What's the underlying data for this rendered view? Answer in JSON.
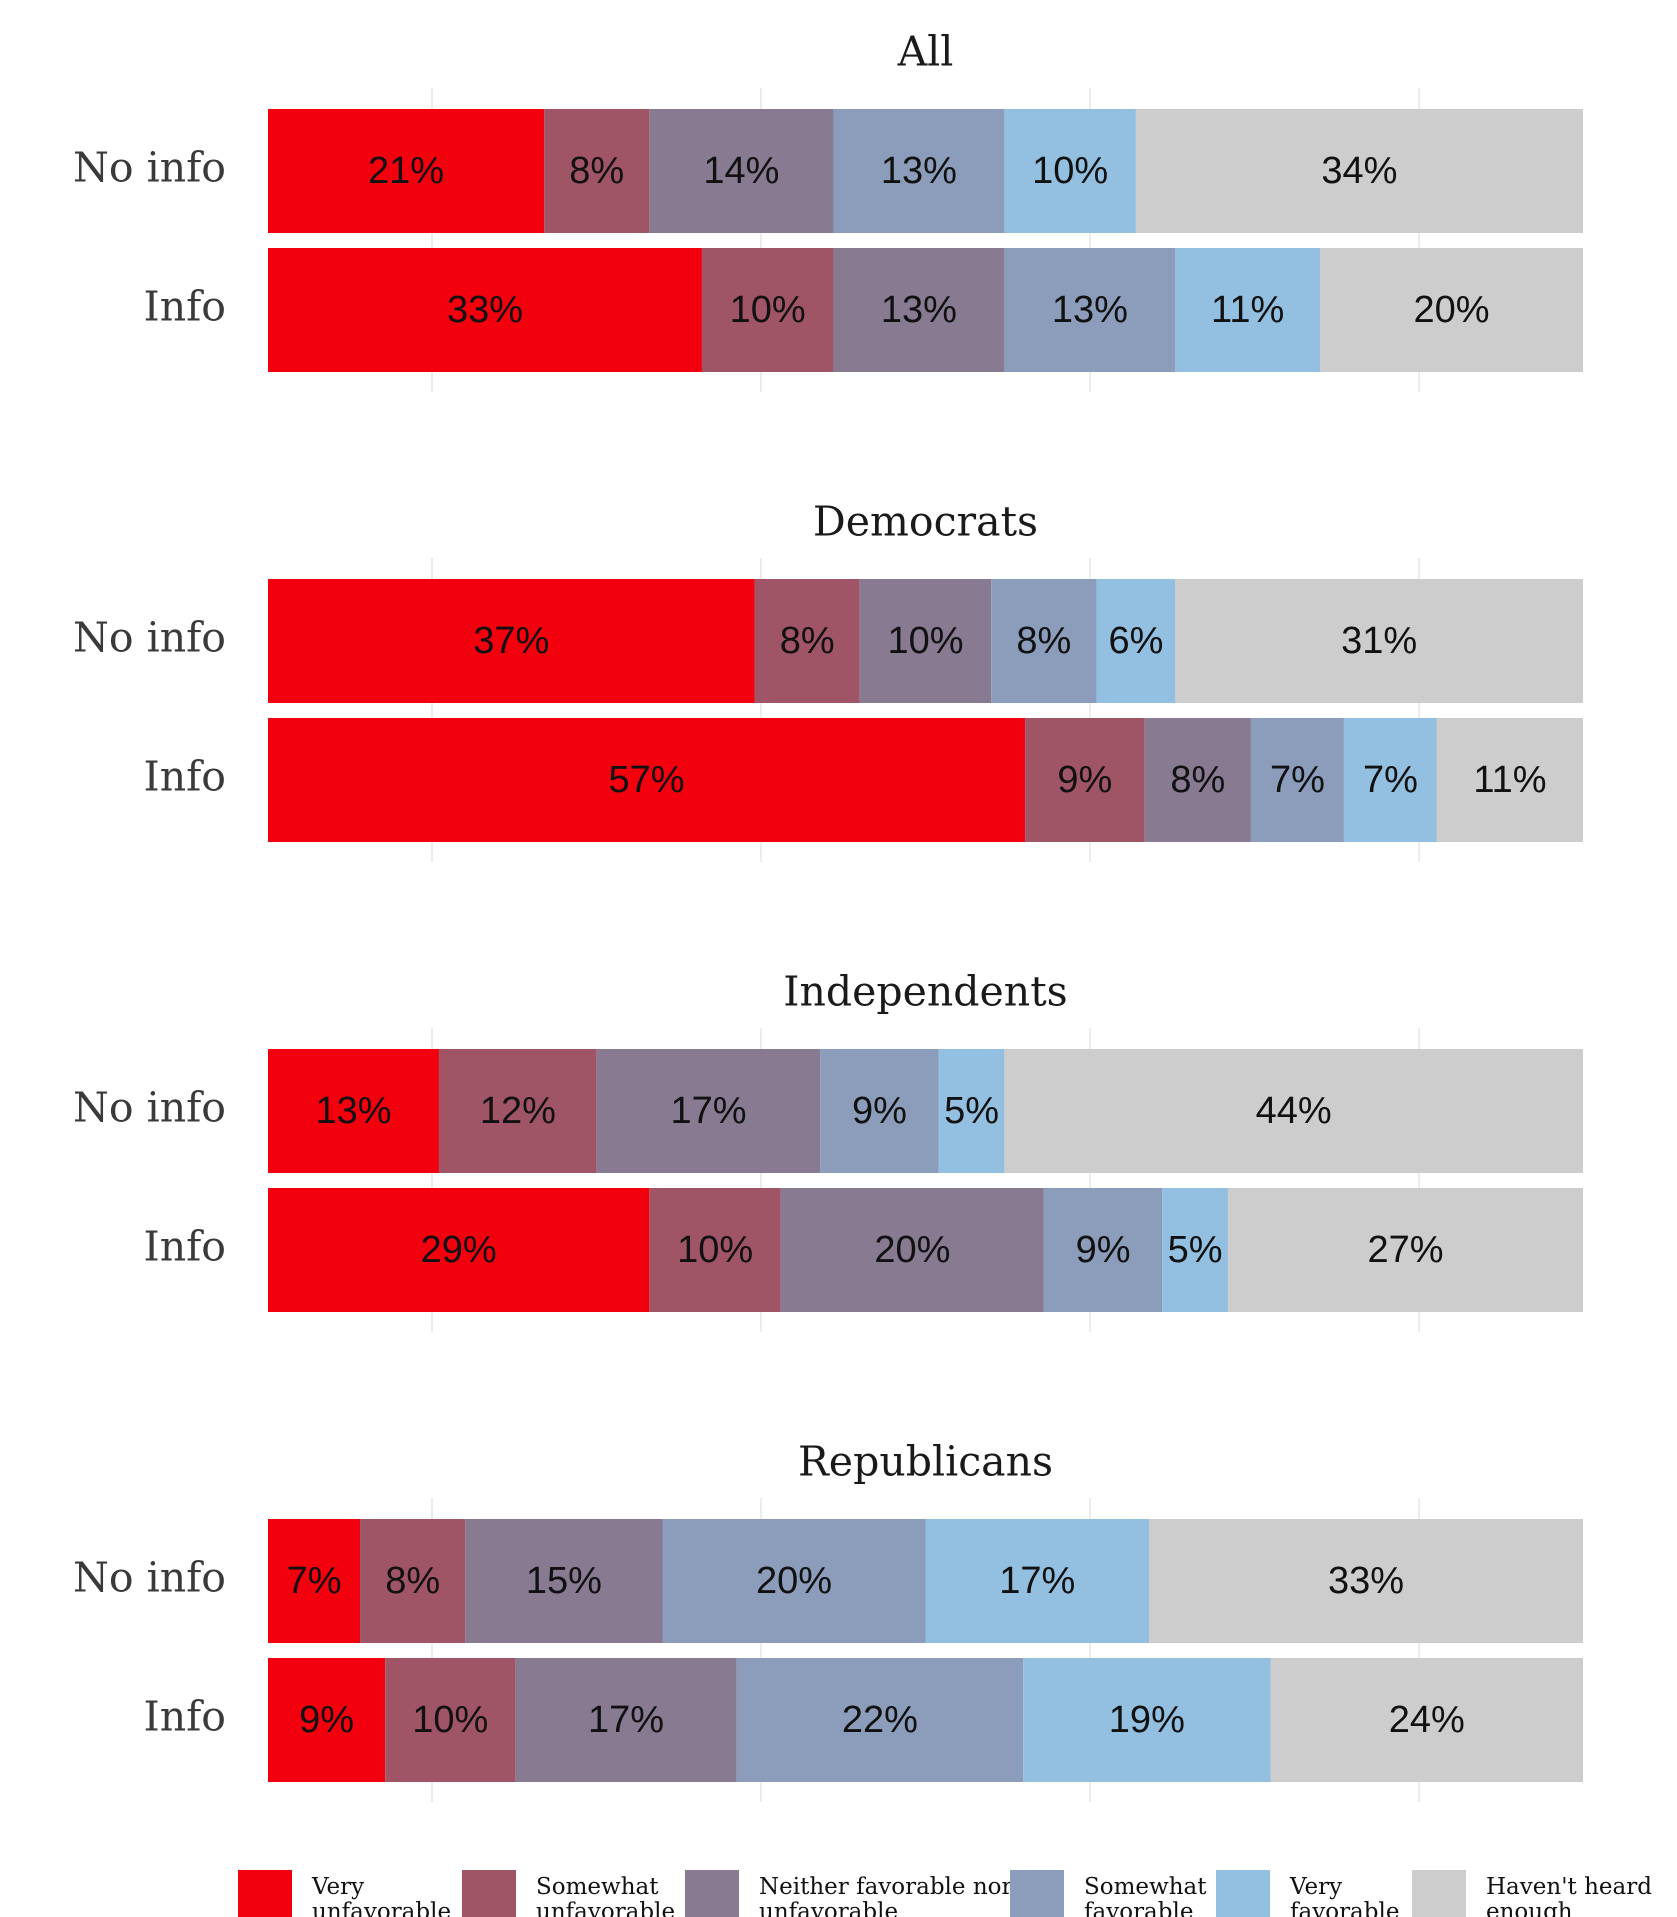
{
  "chart_data": {
    "type": "bar",
    "orientation": "horizontal",
    "stacked": true,
    "normalized": true,
    "rows": [
      "No info",
      "Info"
    ],
    "grid": true,
    "legend_position": "bottom",
    "categories": [
      "Very unfavorable",
      "Somewhat unfavorable",
      "Neither favorable nor unfavorable",
      "Somewhat favorable",
      "Very favorable",
      "Haven't heard enough"
    ],
    "colors": [
      "#f2000e",
      "#a05567",
      "#877a91",
      "#8b9dba",
      "#93bfe0",
      "#cdcdcd"
    ],
    "panels": [
      {
        "title": "All",
        "series": [
          {
            "values": [
              21,
              8,
              14,
              13,
              10,
              34
            ],
            "labels": [
              "21%",
              "8%",
              "14%",
              "13%",
              "10%",
              "34%"
            ]
          },
          {
            "values": [
              33,
              10,
              13,
              13,
              11,
              20
            ],
            "labels": [
              "33%",
              "10%",
              "13%",
              "13%",
              "11%",
              "20%"
            ]
          }
        ]
      },
      {
        "title": "Democrats",
        "series": [
          {
            "values": [
              37,
              8,
              10,
              8,
              6,
              31
            ],
            "labels": [
              "37%",
              "8%",
              "10%",
              "8%",
              "6%",
              "31%"
            ]
          },
          {
            "values": [
              57,
              9,
              8,
              7,
              7,
              11
            ],
            "labels": [
              "57%",
              "9%",
              "8%",
              "7%",
              "7%",
              "11%"
            ]
          }
        ]
      },
      {
        "title": "Independents",
        "series": [
          {
            "values": [
              13,
              12,
              17,
              9,
              5,
              44
            ],
            "labels": [
              "13%",
              "12%",
              "17%",
              "9%",
              "5%",
              "44%"
            ]
          },
          {
            "values": [
              29,
              10,
              20,
              9,
              5,
              27
            ],
            "labels": [
              "29%",
              "10%",
              "20%",
              "9%",
              "5%",
              "27%"
            ]
          }
        ]
      },
      {
        "title": "Republicans",
        "series": [
          {
            "values": [
              7,
              8,
              15,
              20,
              17,
              33
            ],
            "labels": [
              "7%",
              "8%",
              "15%",
              "20%",
              "17%",
              "33%"
            ]
          },
          {
            "values": [
              9,
              10,
              17,
              22,
              19,
              24
            ],
            "labels": [
              "9%",
              "10%",
              "17%",
              "22%",
              "19%",
              "24%"
            ]
          }
        ]
      }
    ],
    "legend": [
      {
        "lines": [
          "Very",
          "unfavorable"
        ]
      },
      {
        "lines": [
          "Somewhat",
          "unfavorable"
        ]
      },
      {
        "lines": [
          "Neither favorable nor",
          "unfavorable"
        ]
      },
      {
        "lines": [
          "Somewhat",
          "favorable"
        ]
      },
      {
        "lines": [
          "Very",
          "favorable"
        ]
      },
      {
        "lines": [
          "Haven't heard",
          "enough"
        ]
      }
    ]
  }
}
